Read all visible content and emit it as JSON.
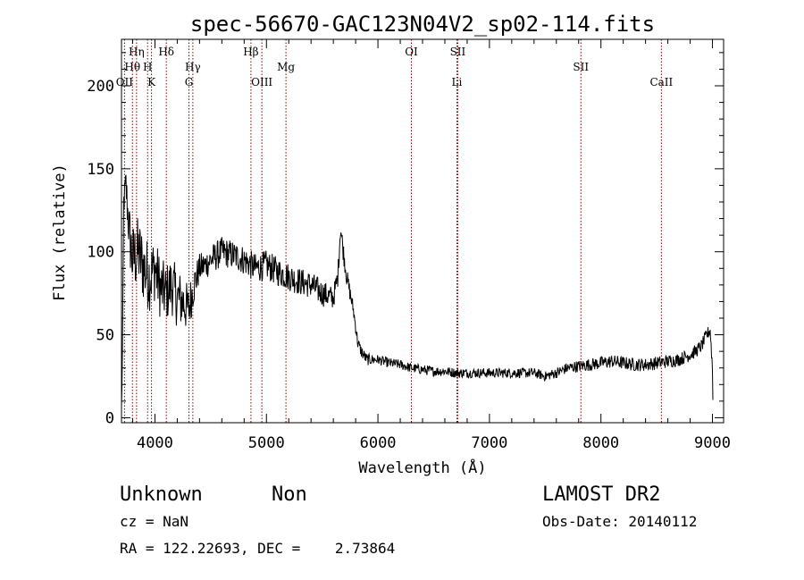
{
  "chart_data": {
    "type": "line",
    "title": "spec-56670-GAC123N04V2_sp02-114.fits",
    "xlabel": "Wavelength (Å)",
    "ylabel": "Flux (relative)",
    "xlim": [
      3700,
      9100
    ],
    "ylim": [
      -3,
      228
    ],
    "x_ticks": [
      4000,
      5000,
      6000,
      7000,
      8000,
      9000
    ],
    "y_ticks": [
      0,
      50,
      100,
      150,
      200
    ],
    "grid": false,
    "legend": "none",
    "line_color": "#000000",
    "marker_color": "#8b0000",
    "spectrum_anchors": [
      [
        3700,
        5
      ],
      [
        3710,
        45
      ],
      [
        3720,
        130
      ],
      [
        3740,
        140
      ],
      [
        3760,
        120
      ],
      [
        3780,
        105
      ],
      [
        3800,
        95
      ],
      [
        3850,
        100
      ],
      [
        3900,
        90
      ],
      [
        3950,
        85
      ],
      [
        4000,
        90
      ],
      [
        4050,
        78
      ],
      [
        4100,
        75
      ],
      [
        4150,
        80
      ],
      [
        4200,
        72
      ],
      [
        4250,
        70
      ],
      [
        4300,
        65
      ],
      [
        4350,
        80
      ],
      [
        4400,
        90
      ],
      [
        4450,
        92
      ],
      [
        4500,
        95
      ],
      [
        4600,
        100
      ],
      [
        4700,
        98
      ],
      [
        4800,
        95
      ],
      [
        4900,
        90
      ],
      [
        5000,
        92
      ],
      [
        5100,
        88
      ],
      [
        5200,
        85
      ],
      [
        5300,
        82
      ],
      [
        5400,
        80
      ],
      [
        5500,
        75
      ],
      [
        5600,
        72
      ],
      [
        5640,
        85
      ],
      [
        5665,
        115
      ],
      [
        5690,
        100
      ],
      [
        5720,
        85
      ],
      [
        5780,
        65
      ],
      [
        5820,
        45
      ],
      [
        5850,
        40
      ],
      [
        5900,
        35
      ],
      [
        6000,
        35
      ],
      [
        6100,
        33
      ],
      [
        6200,
        32
      ],
      [
        6300,
        30
      ],
      [
        6400,
        29
      ],
      [
        6500,
        28
      ],
      [
        6600,
        28
      ],
      [
        6700,
        27
      ],
      [
        6800,
        27
      ],
      [
        6900,
        27
      ],
      [
        7000,
        27
      ],
      [
        7100,
        27
      ],
      [
        7200,
        27
      ],
      [
        7300,
        27
      ],
      [
        7400,
        27
      ],
      [
        7500,
        25
      ],
      [
        7600,
        27
      ],
      [
        7700,
        30
      ],
      [
        7800,
        31
      ],
      [
        7900,
        32
      ],
      [
        8000,
        33
      ],
      [
        8100,
        34
      ],
      [
        8200,
        33
      ],
      [
        8300,
        32
      ],
      [
        8400,
        32
      ],
      [
        8500,
        33
      ],
      [
        8600,
        34
      ],
      [
        8700,
        35
      ],
      [
        8800,
        38
      ],
      [
        8850,
        40
      ],
      [
        8900,
        43
      ],
      [
        8950,
        50
      ],
      [
        8980,
        53
      ],
      [
        9000,
        30
      ],
      [
        9005,
        5
      ]
    ],
    "noise_profile": [
      [
        3700,
        6
      ],
      [
        3800,
        22
      ],
      [
        3900,
        22
      ],
      [
        4000,
        20
      ],
      [
        4100,
        18
      ],
      [
        4200,
        18
      ],
      [
        4300,
        15
      ],
      [
        4400,
        9
      ],
      [
        4600,
        9
      ],
      [
        5000,
        9
      ],
      [
        5500,
        8
      ],
      [
        5700,
        6
      ],
      [
        5800,
        4
      ],
      [
        6000,
        3
      ],
      [
        7000,
        3
      ],
      [
        7500,
        3
      ],
      [
        8000,
        4
      ],
      [
        8600,
        4
      ],
      [
        9000,
        4
      ]
    ],
    "line_markers": [
      {
        "label": "OII",
        "wavelength": 3727,
        "row": 3
      },
      {
        "label": "Hθ",
        "wavelength": 3798,
        "row": 2
      },
      {
        "label": "Hη",
        "wavelength": 3835,
        "row": 1
      },
      {
        "label": "H",
        "wavelength": 3934,
        "row": 2
      },
      {
        "label": "K",
        "wavelength": 3969,
        "row": 3
      },
      {
        "label": "Hδ",
        "wavelength": 4102,
        "row": 1
      },
      {
        "label": "Hγ",
        "wavelength": 4340,
        "row": 2
      },
      {
        "label": "G",
        "wavelength": 4305,
        "row": 3
      },
      {
        "label": "Hβ",
        "wavelength": 4861,
        "row": 1
      },
      {
        "label": "OIII",
        "wavelength": 4959,
        "row": 3
      },
      {
        "label": "Mg",
        "wavelength": 5175,
        "row": 2
      },
      {
        "label": "OI",
        "wavelength": 6300,
        "row": 1
      },
      {
        "label": "SII",
        "wavelength": 6716,
        "row": 1
      },
      {
        "label": "Li",
        "wavelength": 6708,
        "row": 3
      },
      {
        "label": "SII",
        "wavelength": 7820,
        "row": 2
      },
      {
        "label": "CaII",
        "wavelength": 8542,
        "row": 3
      }
    ]
  },
  "info": {
    "class": "Unknown",
    "subclass": "Non",
    "survey": "LAMOST DR2",
    "cz": "cz = NaN",
    "obs_date": "Obs-Date: 20140112",
    "coords": "RA = 122.22693, DEC =    2.73864"
  }
}
